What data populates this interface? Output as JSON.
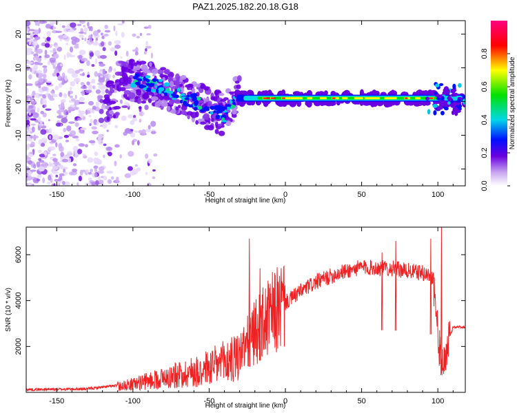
{
  "title": "PAZ1.2025.182.20.18.G18",
  "chart_data": [
    {
      "type": "heatmap",
      "xlabel": "Height of straight line (km)",
      "ylabel": "Frequency (Hz)",
      "xlim": [
        -170,
        118
      ],
      "ylim": [
        -25,
        24
      ],
      "xticks": [
        -150,
        -100,
        -50,
        0,
        50,
        100
      ],
      "yticks": [
        -20,
        -10,
        0,
        10,
        20
      ],
      "colorbar": {
        "label": "Normalized spectral amplitude",
        "range": [
          0,
          1
        ],
        "ticks": [
          "0.0",
          "0.2",
          "0.4",
          "0.6",
          "0.8"
        ],
        "colors": [
          "#ffffff",
          "#6a00e0",
          "#0000ff",
          "#00e0e0",
          "#00e000",
          "#ffff00",
          "#ff0000",
          "#ff0080"
        ]
      },
      "ridge": [
        {
          "x": -110,
          "y": 7
        },
        {
          "x": -95,
          "y": 6
        },
        {
          "x": -80,
          "y": 4
        },
        {
          "x": -65,
          "y": 1
        },
        {
          "x": -50,
          "y": -2
        },
        {
          "x": -40,
          "y": -4
        },
        {
          "x": -32,
          "y": 1
        },
        {
          "x": 0,
          "y": 1
        },
        {
          "x": 50,
          "y": 1
        },
        {
          "x": 95,
          "y": 1
        },
        {
          "x": 105,
          "y": 1
        },
        {
          "x": 118,
          "y": 0
        }
      ]
    },
    {
      "type": "line",
      "xlabel": "Height of straight line (km)",
      "ylabel": "SNR (10 * v/v)",
      "xlim": [
        -170,
        118
      ],
      "ylim": [
        0,
        7200
      ],
      "xticks": [
        -150,
        -100,
        -50,
        0,
        50,
        100
      ],
      "yticks": [
        2000,
        4000,
        6000
      ],
      "color": "#ee2222",
      "envelope": [
        {
          "x": -170,
          "y": 120
        },
        {
          "x": -130,
          "y": 150
        },
        {
          "x": -110,
          "y": 300
        },
        {
          "x": -100,
          "y": 400
        },
        {
          "x": -80,
          "y": 700
        },
        {
          "x": -60,
          "y": 1000
        },
        {
          "x": -45,
          "y": 1300
        },
        {
          "x": -30,
          "y": 1700
        },
        {
          "x": -20,
          "y": 2600
        },
        {
          "x": -10,
          "y": 3300
        },
        {
          "x": 0,
          "y": 3900
        },
        {
          "x": 10,
          "y": 4400
        },
        {
          "x": 20,
          "y": 4800
        },
        {
          "x": 35,
          "y": 5200
        },
        {
          "x": 50,
          "y": 5450
        },
        {
          "x": 70,
          "y": 5400
        },
        {
          "x": 90,
          "y": 5200
        },
        {
          "x": 97,
          "y": 5000
        },
        {
          "x": 100,
          "y": 2500
        },
        {
          "x": 103,
          "y": 1000
        },
        {
          "x": 107,
          "y": 2200
        },
        {
          "x": 110,
          "y": 2850
        },
        {
          "x": 118,
          "y": 2850
        }
      ],
      "spikes": [
        {
          "x": -24,
          "y": 6700
        },
        {
          "x": -17,
          "y": 5400
        },
        {
          "x": 63,
          "y": 6100
        },
        {
          "x": 72,
          "y": 6600
        },
        {
          "x": 95,
          "y": 6700
        },
        {
          "x": 102,
          "y": 7200
        }
      ]
    }
  ]
}
